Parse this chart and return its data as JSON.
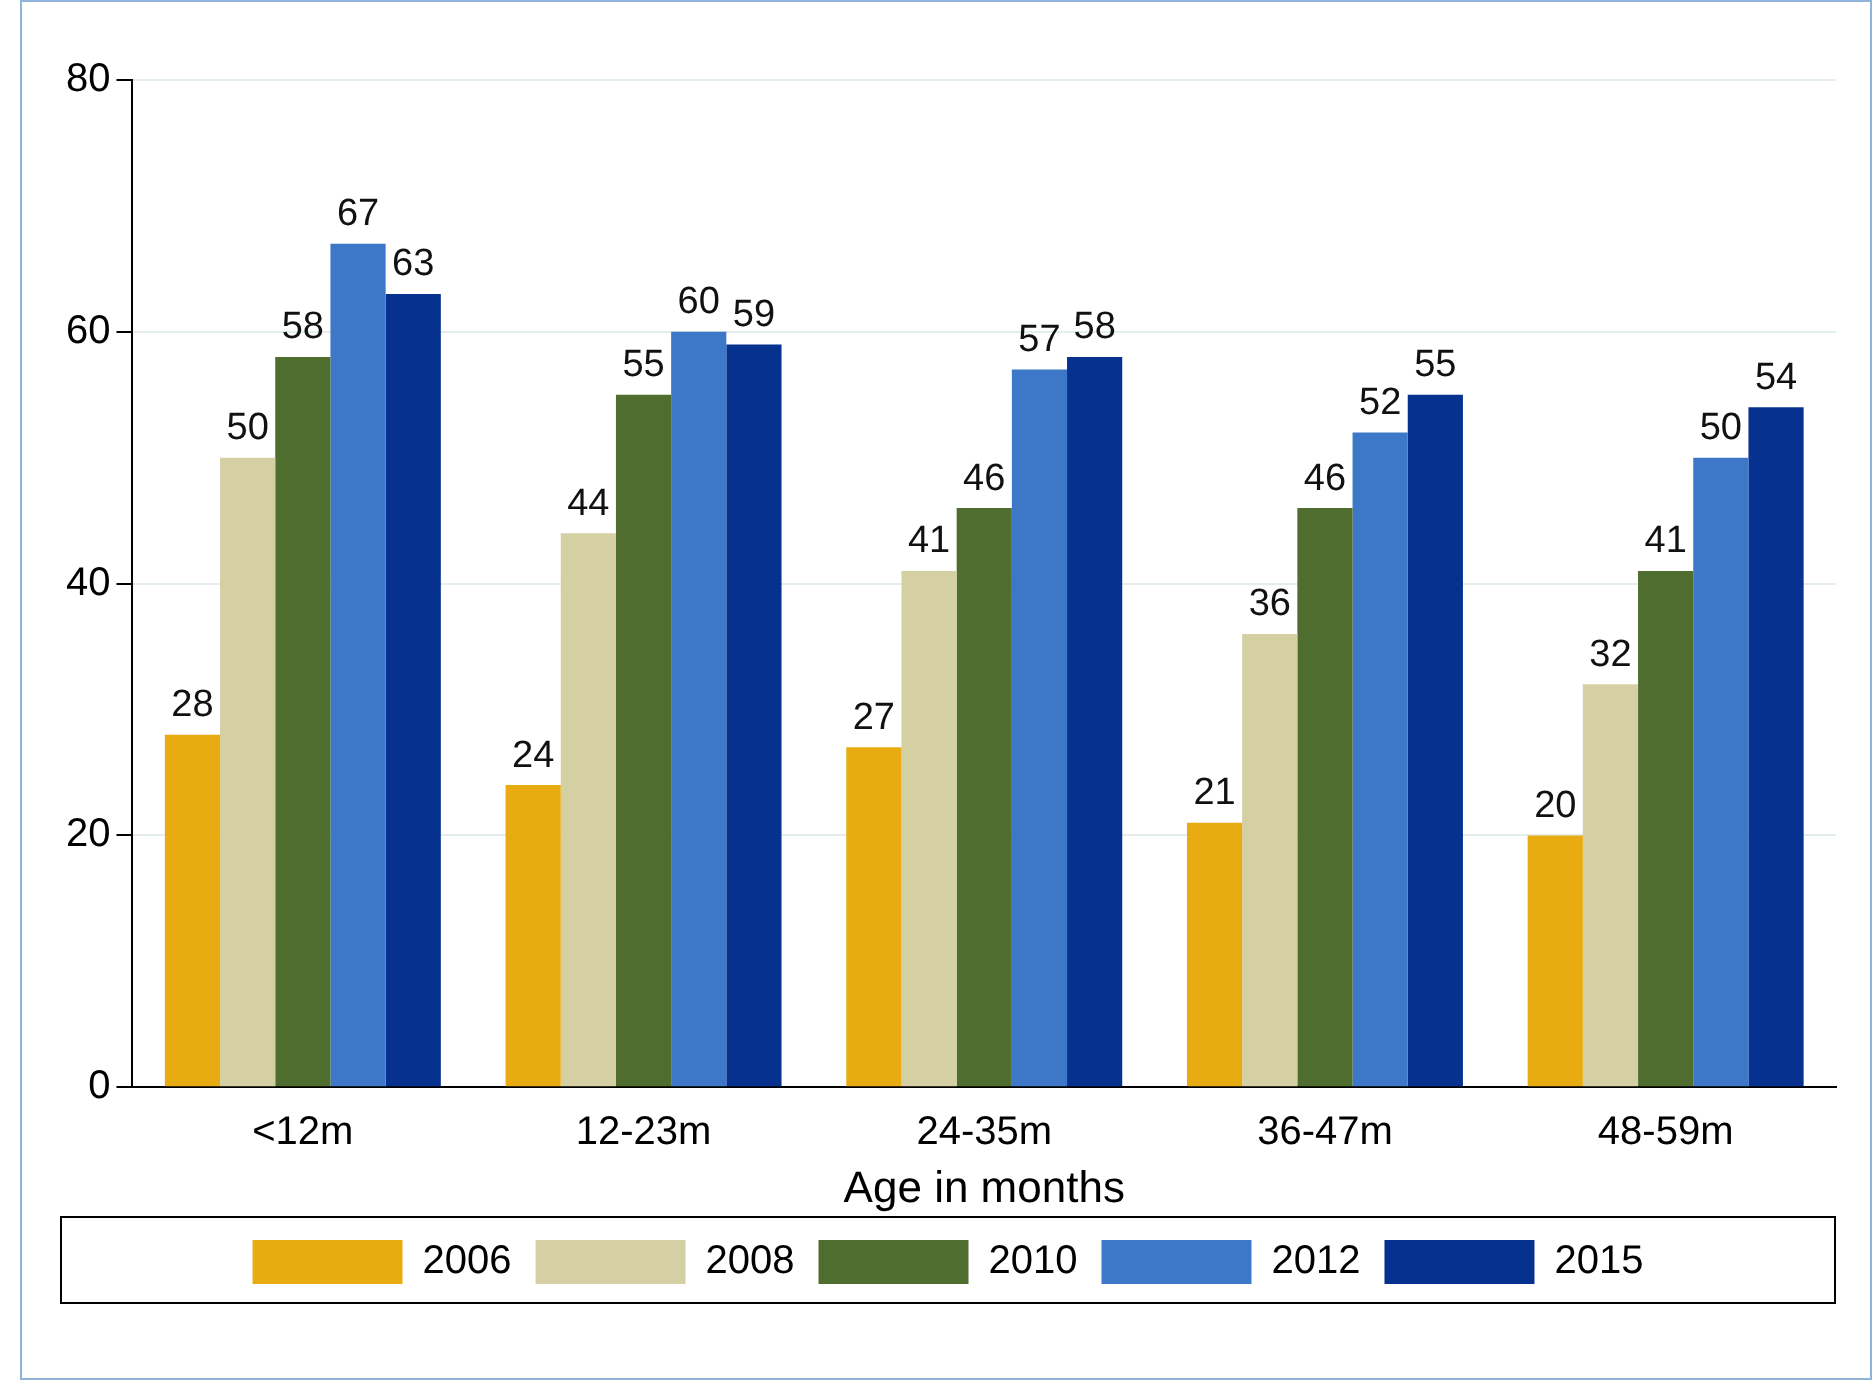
{
  "chart_data": {
    "type": "bar",
    "xlabel": "Age in months",
    "categories": [
      "<12m",
      "12-23m",
      "24-35m",
      "36-47m",
      "48-59m"
    ],
    "series": [
      {
        "name": "2006",
        "color": "#e8ac12",
        "values": [
          28,
          24,
          27,
          21,
          20
        ]
      },
      {
        "name": "2008",
        "color": "#d5cfa4",
        "values": [
          50,
          44,
          41,
          36,
          32
        ]
      },
      {
        "name": "2010",
        "color": "#4f6d2e",
        "values": [
          58,
          55,
          46,
          46,
          41
        ]
      },
      {
        "name": "2012",
        "color": "#3d78c8",
        "values": [
          67,
          60,
          57,
          52,
          50
        ]
      },
      {
        "name": "2015",
        "color": "#07318f",
        "values": [
          63,
          59,
          58,
          55,
          54
        ]
      }
    ],
    "ylim": [
      0,
      80
    ],
    "yticks": [
      0,
      20,
      40,
      60,
      80
    ],
    "grid": "y",
    "legend": "bottom",
    "data_labels": true
  }
}
